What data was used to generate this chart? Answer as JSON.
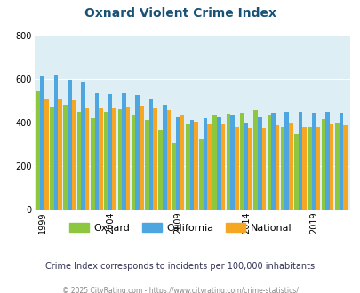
{
  "title": "Oxnard Violent Crime Index",
  "subtitle": "Crime Index corresponds to incidents per 100,000 inhabitants",
  "footer": "© 2025 CityRating.com - https://www.cityrating.com/crime-statistics/",
  "years": [
    1999,
    2000,
    2001,
    2002,
    2003,
    2004,
    2005,
    2006,
    2007,
    2008,
    2009,
    2010,
    2011,
    2012,
    2013,
    2014,
    2015,
    2016,
    2017,
    2018,
    2019,
    2020,
    2021
  ],
  "oxnard": [
    543,
    470,
    480,
    450,
    420,
    450,
    460,
    435,
    410,
    365,
    305,
    390,
    320,
    435,
    440,
    445,
    455,
    435,
    380,
    345,
    380,
    415,
    395
  ],
  "california": [
    610,
    620,
    595,
    585,
    535,
    530,
    535,
    525,
    505,
    480,
    425,
    410,
    420,
    425,
    430,
    400,
    425,
    445,
    450,
    450,
    445,
    450,
    445
  ],
  "national": [
    510,
    505,
    500,
    465,
    465,
    465,
    470,
    475,
    465,
    455,
    430,
    405,
    390,
    390,
    380,
    375,
    375,
    385,
    395,
    380,
    380,
    390,
    385
  ],
  "bar_colors": {
    "oxnard": "#8dc63f",
    "california": "#4da6e0",
    "national": "#f5a623"
  },
  "background_color": "#ddeef4",
  "ylim": [
    0,
    800
  ],
  "yticks": [
    0,
    200,
    400,
    600,
    800
  ],
  "xtick_years": [
    1999,
    2004,
    2009,
    2014,
    2019
  ],
  "title_color": "#1a5276",
  "subtitle_color": "#333355",
  "footer_color": "#888888"
}
